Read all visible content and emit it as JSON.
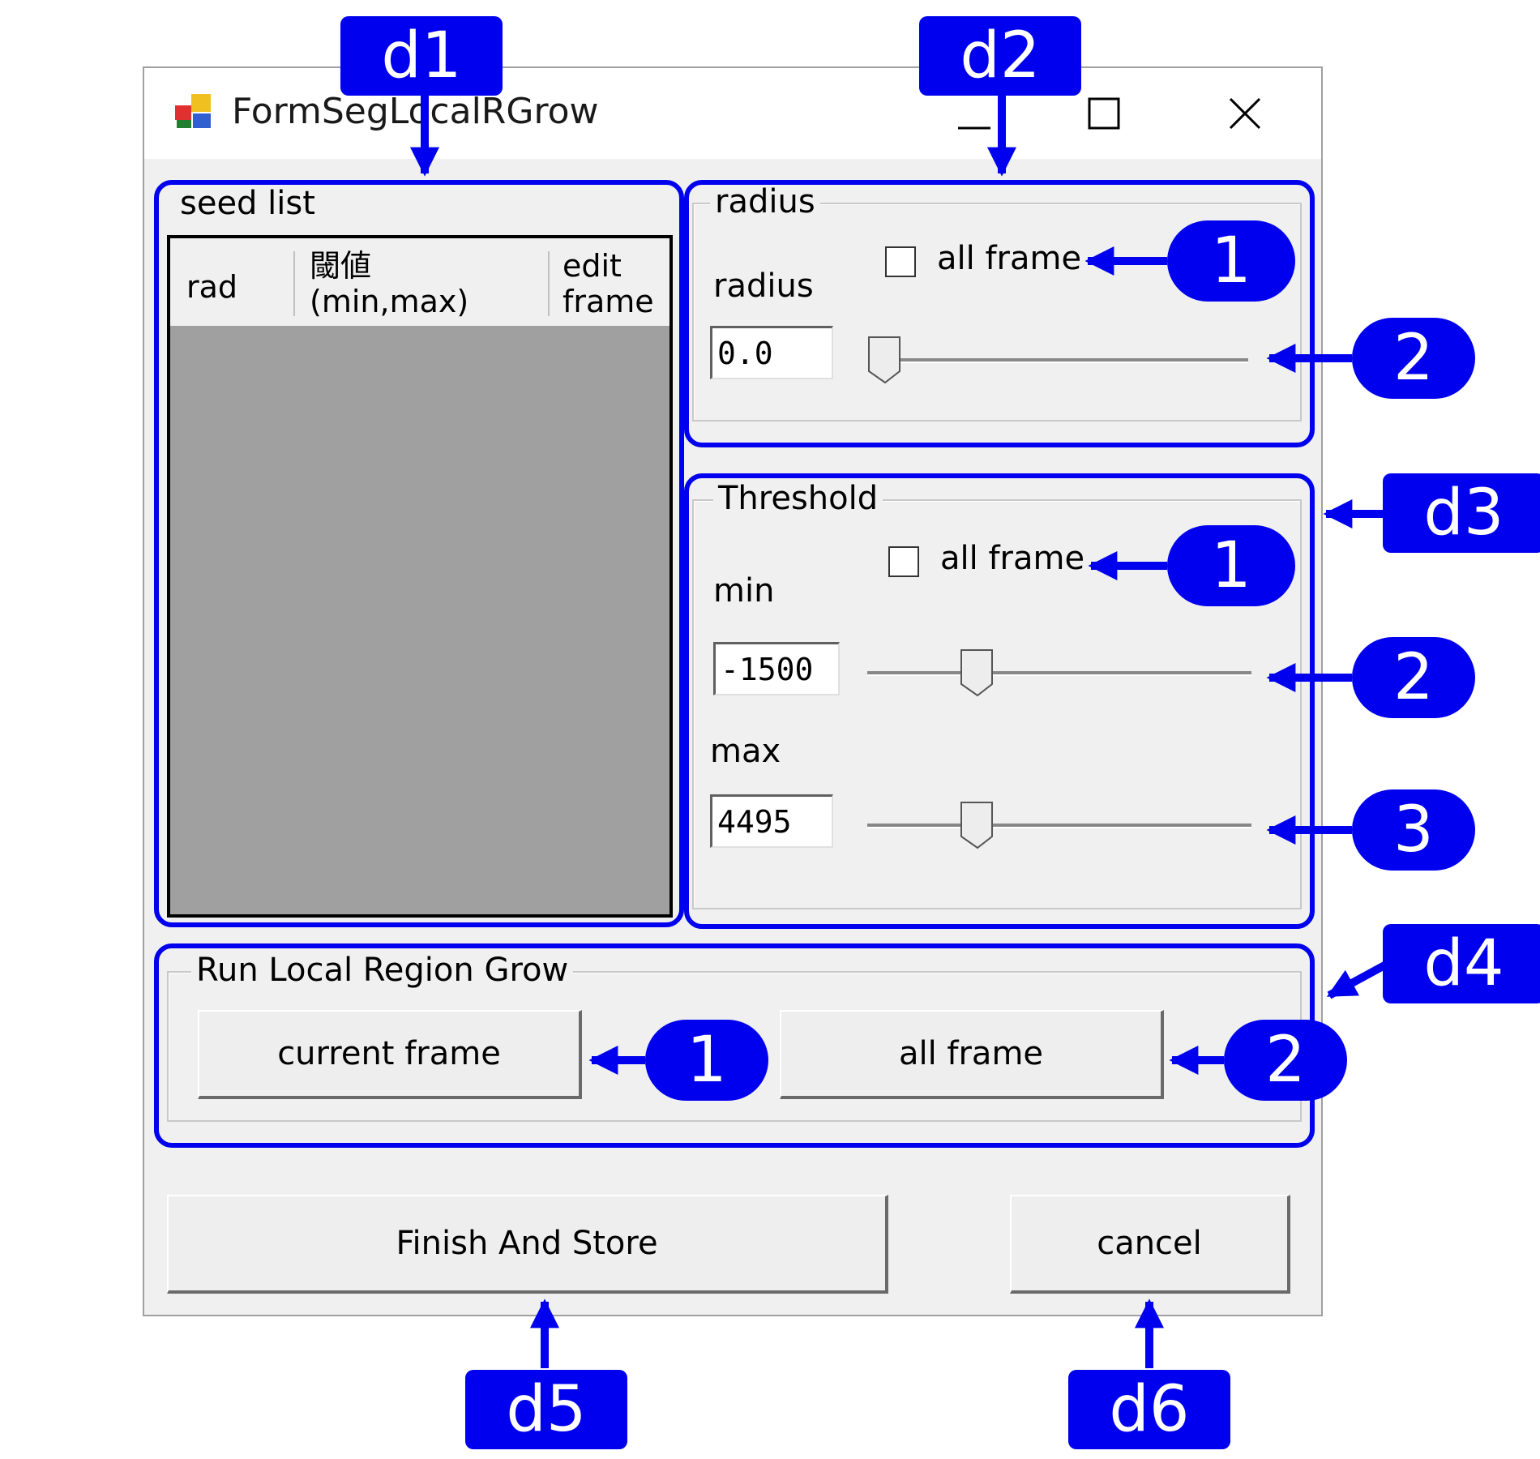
{
  "window": {
    "title": "FormSegLocalRGrow",
    "controls": {
      "minimize": "minimize-icon",
      "maximize": "maximize-icon",
      "close": "close-icon"
    }
  },
  "seed_list": {
    "group_label": "seed list",
    "columns": [
      {
        "line1": "rad",
        "line2": ""
      },
      {
        "line1": "閾値",
        "line2": "(min,max)"
      },
      {
        "line1": "edit",
        "line2": "frame"
      }
    ]
  },
  "radius": {
    "group_label": "radius",
    "field_label": "radius",
    "value": "0.0",
    "all_frame_label": "all frame",
    "all_frame_checked": false,
    "slider_fraction": 0.0
  },
  "threshold": {
    "group_label": "Threshold",
    "all_frame_label": "all frame",
    "all_frame_checked": false,
    "min_label": "min",
    "min_value": "-1500",
    "min_slider_fraction": 0.26,
    "max_label": "max",
    "max_value": "4495",
    "max_slider_fraction": 0.26
  },
  "run": {
    "group_label": "Run Local Region Grow",
    "current_frame_label": "current frame",
    "all_frame_label": "all frame"
  },
  "footer": {
    "finish_label": "Finish And Store",
    "cancel_label": "cancel"
  },
  "annotations": {
    "colors": {
      "accent": "#0000ee"
    },
    "tags": {
      "d1": "d1",
      "d2": "d2",
      "d3": "d3",
      "d4": "d4",
      "d5": "d5",
      "d6": "d6"
    },
    "markers": {
      "radius_checkbox": "1",
      "radius_slider": "2",
      "threshold_checkbox": "1",
      "threshold_min_slider": "2",
      "threshold_max_slider": "3",
      "run_current": "1",
      "run_all": "2"
    }
  }
}
